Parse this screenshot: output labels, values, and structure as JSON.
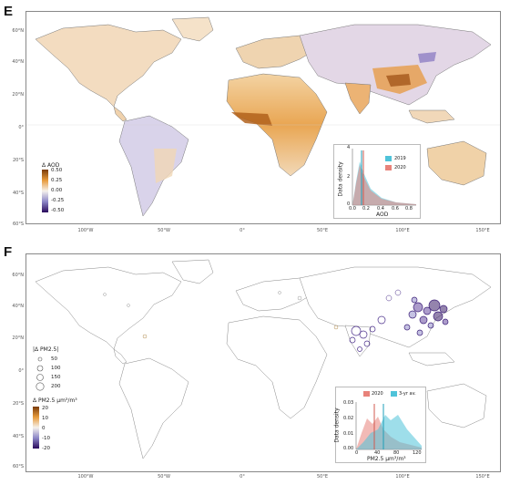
{
  "panel_e": {
    "letter": "E",
    "lat_labels": [
      "60°N",
      "40°N",
      "20°N",
      "0°",
      "20°S",
      "40°S",
      "60°S"
    ],
    "lon_labels": [
      "100°W",
      "50°W",
      "0°",
      "50°E",
      "100°E",
      "150°E"
    ],
    "legend": {
      "title": "Δ AOD",
      "ticks": [
        "0.50",
        "0.25",
        "0.00",
        "-0.25",
        "-0.50"
      ],
      "colors": {
        "high": "#7a3b0a",
        "mid_high": "#e79a3b",
        "zero": "#f5f1ec",
        "mid_low": "#8c86c7",
        "low": "#2a0a5c"
      }
    },
    "inset": {
      "ylabel": "Data density",
      "xlabel": "AOD",
      "series": [
        {
          "name": "2019",
          "color": "#4fc3d9"
        },
        {
          "name": "2020",
          "color": "#e8827a"
        }
      ],
      "y_ticks": [
        "0",
        "2",
        "4"
      ],
      "x_ticks": [
        "0.0",
        "0.2",
        "0.4",
        "0.6",
        "0.8"
      ]
    }
  },
  "panel_f": {
    "letter": "F",
    "lat_labels": [
      "60°N",
      "40°N",
      "20°N",
      "0°",
      "20°S",
      "40°S",
      "60°S"
    ],
    "lon_labels": [
      "100°W",
      "50°W",
      "0°",
      "50°E",
      "100°E",
      "150°E"
    ],
    "size_legend": {
      "title": "|Δ PM2.5|",
      "values": [
        "50",
        "100",
        "150",
        "200"
      ]
    },
    "color_legend": {
      "title": "Δ PM2.5 μm³/m³",
      "ticks": [
        "20",
        "10",
        "0",
        "-10",
        "-20"
      ]
    },
    "inset": {
      "ylabel": "Data density",
      "xlabel": "PM2.5 μm³/m³",
      "series": [
        {
          "name": "2020",
          "color": "#e8827a"
        },
        {
          "name": "3-yr av.",
          "color": "#4fc3d9"
        }
      ],
      "y_ticks": [
        "0.00",
        "0.01",
        "0.02",
        "0.03"
      ],
      "x_ticks": [
        "0",
        "40",
        "80",
        "120"
      ]
    }
  }
}
